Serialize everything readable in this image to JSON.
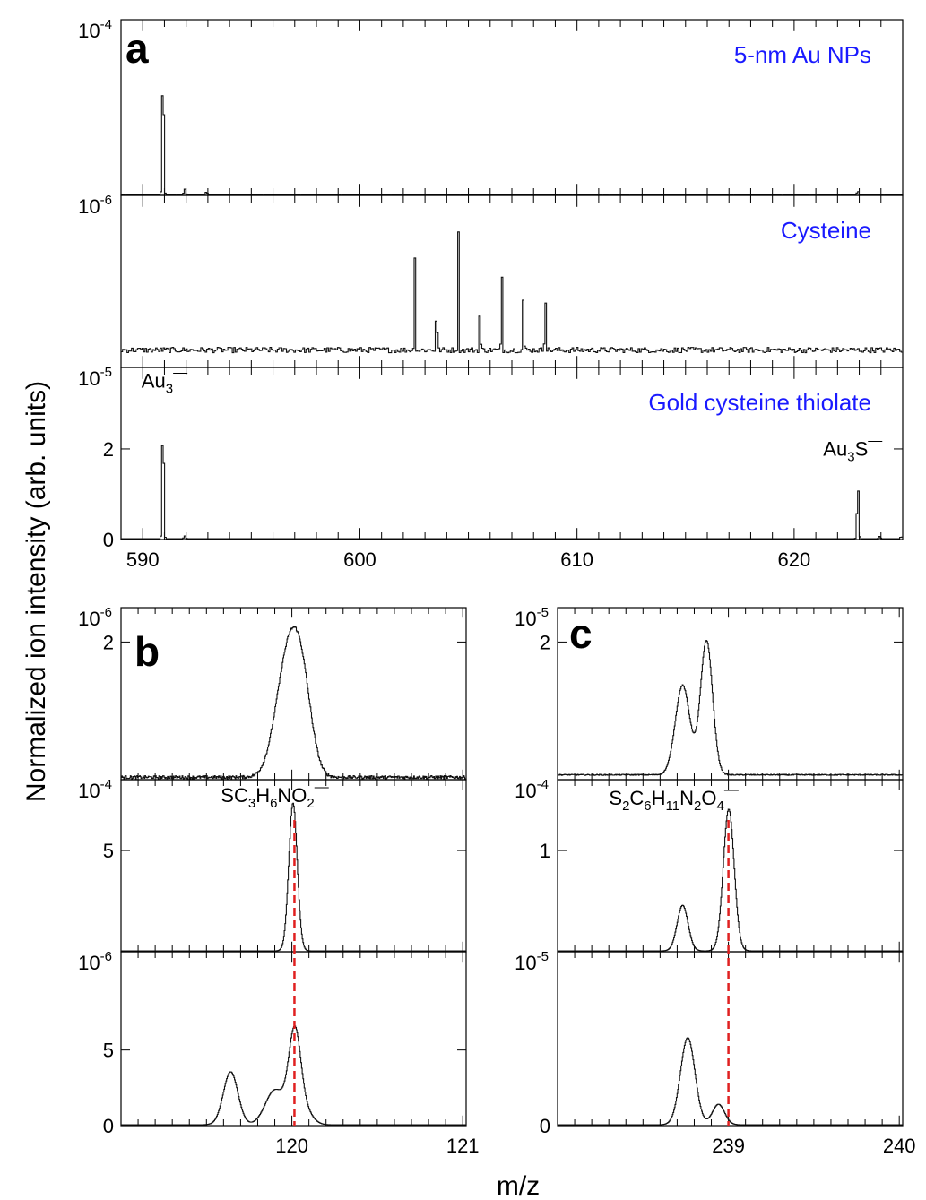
{
  "figure": {
    "ylabel": "Normalized ion intensity (arb. units)",
    "xlabel": "m/z"
  },
  "colors": {
    "annotation": "#1a1aff",
    "reference_line": "#e02020",
    "trace": "#111111"
  },
  "chart_data": [
    {
      "id": "a",
      "panel_letter": "a",
      "type": "line",
      "xlim": [
        589,
        625
      ],
      "x_ticks": [
        590,
        600,
        610,
        620
      ],
      "x_tick_labels": [
        "590",
        "600",
        "610",
        "620"
      ],
      "subplots": [
        {
          "title": "5-nm Au NPs",
          "exp_label": "10",
          "exp_sup": "-4",
          "y_ticks": [],
          "y_tick_labels": [],
          "ylim": [
            0,
            1
          ],
          "peaks": [
            {
              "x": 590.9,
              "h": 0.82,
              "w": 0.05
            },
            {
              "x": 591.9,
              "h": 0.03,
              "w": 0.05
            },
            {
              "x": 592.9,
              "h": 0.015,
              "w": 0.05
            },
            {
              "x": 622.9,
              "h": 0.02,
              "w": 0.05
            }
          ],
          "noise": 0.004,
          "labels": []
        },
        {
          "title": "Cysteine",
          "exp_label": "10",
          "exp_sup": "-6",
          "y_ticks": [],
          "y_tick_labels": [],
          "ylim": [
            0,
            1
          ],
          "peaks": [
            {
              "x": 602.5,
              "h": 0.55,
              "w": 0.03
            },
            {
              "x": 603.5,
              "h": 0.5,
              "w": 0.03
            },
            {
              "x": 604.5,
              "h": 0.72,
              "w": 0.03
            },
            {
              "x": 605.5,
              "h": 0.35,
              "w": 0.03
            },
            {
              "x": 606.5,
              "h": 0.55,
              "w": 0.03
            },
            {
              "x": 607.5,
              "h": 0.38,
              "w": 0.03
            },
            {
              "x": 608.5,
              "h": 0.52,
              "w": 0.03
            }
          ],
          "noise": 0.16,
          "baseline": 0.08,
          "labels": []
        },
        {
          "title": "Gold cysteine thiolate",
          "exp_label": "10",
          "exp_sup": "-5",
          "y_ticks": [
            0,
            2
          ],
          "y_tick_labels": [
            "0",
            "2"
          ],
          "ylim": [
            0,
            3.8
          ],
          "peaks": [
            {
              "x": 590.9,
              "h": 3.0,
              "w": 0.05
            },
            {
              "x": 591.9,
              "h": 0.06,
              "w": 0.05
            },
            {
              "x": 622.9,
              "h": 1.3,
              "w": 0.05
            },
            {
              "x": 623.9,
              "h": 0.05,
              "w": 0.05
            },
            {
              "x": 624.9,
              "h": 0.05,
              "w": 0.05
            }
          ],
          "noise": 0.005,
          "labels": [
            {
              "base": "Au",
              "sub": "3",
              "sup": "—",
              "tail": "",
              "x": 591.0,
              "y": 3.35
            },
            {
              "base": "Au",
              "sub": "3",
              "sup": "—",
              "tail": "S",
              "x": 622.7,
              "y": 1.85
            }
          ]
        }
      ]
    },
    {
      "id": "b",
      "panel_letter": "b",
      "type": "line",
      "xlim": [
        119.0,
        121.02
      ],
      "x_ticks": [
        120,
        121
      ],
      "x_tick_labels": [
        "120",
        "121"
      ],
      "ref_line_x": 120.015,
      "subplots": [
        {
          "title": "",
          "exp_label": "10",
          "exp_sup": "-6",
          "y_ticks": [
            2
          ],
          "y_tick_labels": [
            "2"
          ],
          "ylim": [
            0,
            2.5
          ],
          "peaks": [
            {
              "x": 119.975,
              "h": 1.7,
              "w": 0.1
            },
            {
              "x": 120.06,
              "h": 1.0,
              "w": 0.08
            }
          ],
          "noise": 0.09,
          "baseline": 0.0,
          "labels": []
        },
        {
          "title": "",
          "exp_label": "10",
          "exp_sup": "-4",
          "y_ticks": [
            5
          ],
          "y_tick_labels": [
            "5"
          ],
          "ylim": [
            0,
            8.5
          ],
          "peaks": [
            {
              "x": 120.005,
              "h": 7.3,
              "w": 0.035
            }
          ],
          "noise": 0.0,
          "labels": [
            {
              "base": "SC",
              "sub": "3",
              "tail": "H",
              "sub2": "6",
              "tail2": "NO",
              "sub3": "2",
              "sup": "—",
              "x": 119.9,
              "y": 7.4
            }
          ]
        },
        {
          "title": "",
          "exp_label": "10",
          "exp_sup": "-6",
          "y_ticks": [
            0,
            5
          ],
          "y_tick_labels": [
            "0",
            "5"
          ],
          "ylim": [
            0,
            11.5
          ],
          "peaks": [
            {
              "x": 119.64,
              "h": 3.5,
              "w": 0.06
            },
            {
              "x": 119.9,
              "h": 2.3,
              "w": 0.08
            },
            {
              "x": 120.015,
              "h": 6.0,
              "w": 0.05
            },
            {
              "x": 120.08,
              "h": 0.8,
              "w": 0.06
            }
          ],
          "noise": 0.0,
          "labels": []
        }
      ]
    },
    {
      "id": "c",
      "panel_letter": "c",
      "type": "line",
      "xlim": [
        238.0,
        240.02
      ],
      "x_ticks": [
        239,
        240
      ],
      "x_tick_labels": [
        "239",
        "240"
      ],
      "ref_line_x": 239.0,
      "subplots": [
        {
          "title": "",
          "exp_label": "10",
          "exp_sup": "-5",
          "y_ticks": [
            2
          ],
          "y_tick_labels": [
            "2"
          ],
          "ylim": [
            0,
            2.5
          ],
          "peaks": [
            {
              "x": 238.73,
              "h": 1.3,
              "w": 0.06
            },
            {
              "x": 238.87,
              "h": 1.95,
              "w": 0.05
            }
          ],
          "noise": 0.03,
          "baseline": 0.05,
          "labels": []
        },
        {
          "title": "",
          "exp_label": "10",
          "exp_sup": "-4",
          "y_ticks": [
            1
          ],
          "y_tick_labels": [
            "1"
          ],
          "ylim": [
            0,
            1.7
          ],
          "peaks": [
            {
              "x": 238.73,
              "h": 0.45,
              "w": 0.045
            },
            {
              "x": 239.0,
              "h": 1.4,
              "w": 0.045
            }
          ],
          "noise": 0.0,
          "labels": [
            {
              "base": "S",
              "sub": "2",
              "tail": "C",
              "sub2": "6",
              "tail2": "H",
              "sub3": "11",
              "tail3": "N",
              "sub4": "2",
              "tail4": "O",
              "sub5": "4",
              "sup": "—",
              "x": 238.68,
              "y": 1.45
            }
          ]
        },
        {
          "title": "",
          "exp_label": "10",
          "exp_sup": "-5",
          "y_ticks": [
            0
          ],
          "y_tick_labels": [
            "0"
          ],
          "ylim": [
            0,
            1.7
          ],
          "peaks": [
            {
              "x": 238.76,
              "h": 0.85,
              "w": 0.06
            },
            {
              "x": 238.94,
              "h": 0.2,
              "w": 0.05
            }
          ],
          "noise": 0.0,
          "labels": []
        }
      ]
    }
  ]
}
